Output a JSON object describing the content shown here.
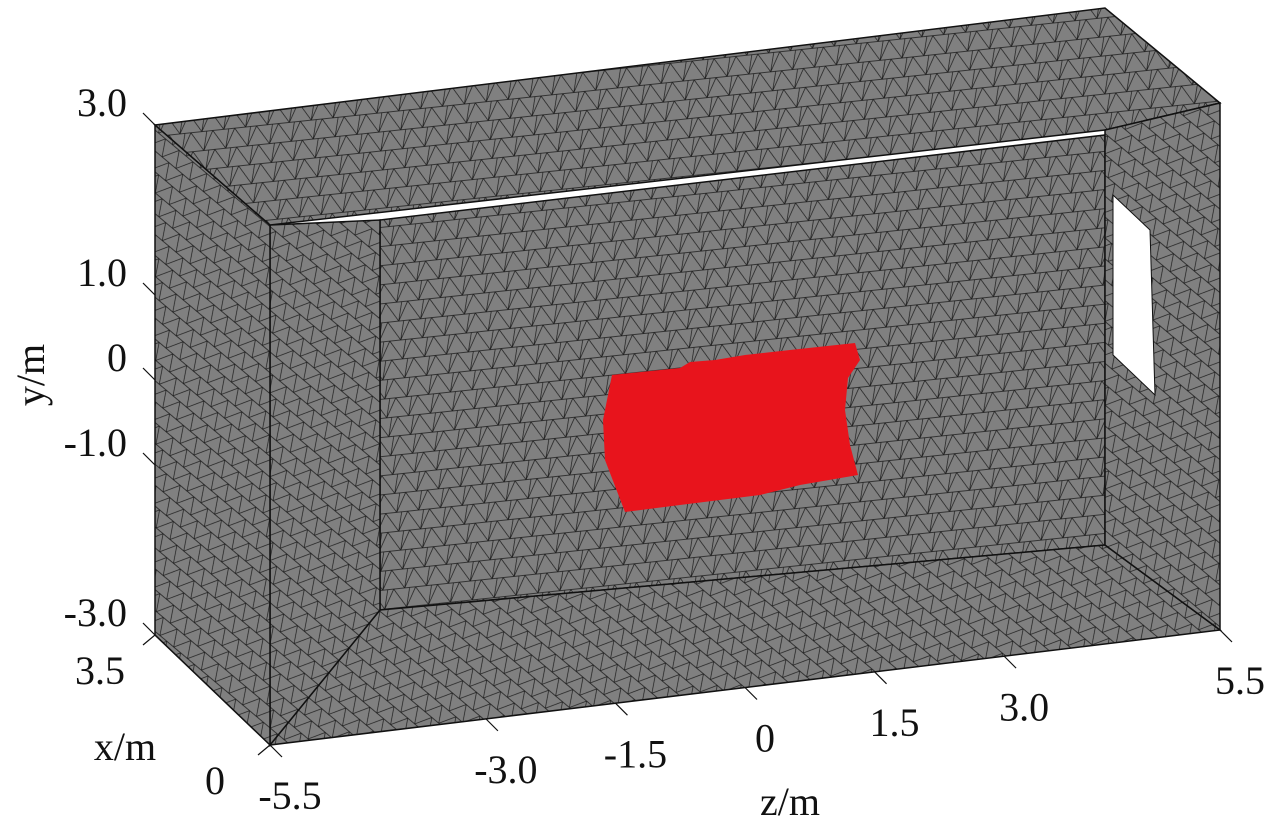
{
  "chart_data": {
    "type": "mesh3d",
    "xlabel": "x/m",
    "ylabel": "y/m",
    "zlabel": "z/m",
    "xlim": [
      0,
      3.5
    ],
    "xticks": [
      3.5,
      0
    ],
    "ylim": [
      -3,
      3
    ],
    "yticks": [
      {
        "value": 3,
        "label": "3.0"
      },
      {
        "value": 1,
        "label": "1.0"
      },
      0,
      {
        "value": -1,
        "label": "-1.0"
      },
      {
        "value": -3,
        "label": "-3.0"
      }
    ],
    "zlim": [
      -5.5,
      5.5
    ],
    "zticks": [
      -5.5,
      {
        "value": -3,
        "label": "-3.0"
      },
      -1.5,
      0,
      1.5,
      {
        "value": 3,
        "label": "3.0"
      },
      5.5
    ],
    "mesh_color": "#808080",
    "highlight_color": "#e8141c"
  }
}
